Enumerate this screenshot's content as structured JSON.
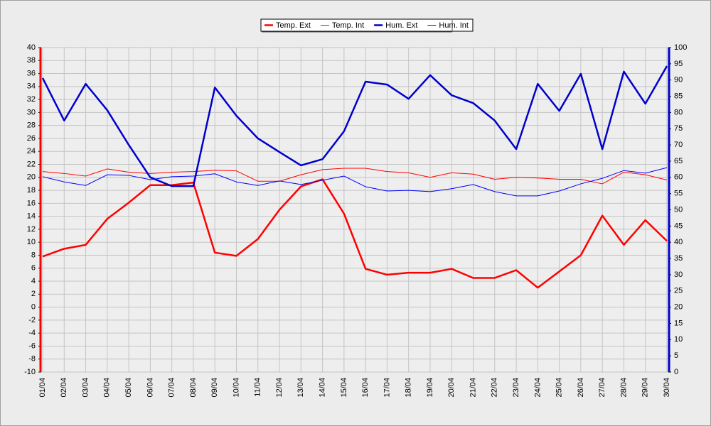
{
  "chart_data": {
    "type": "line",
    "categories": [
      "01/04",
      "02/04",
      "03/04",
      "04/04",
      "05/04",
      "06/04",
      "07/04",
      "08/04",
      "09/04",
      "10/04",
      "11/04",
      "12/04",
      "13/04",
      "14/04",
      "15/04",
      "16/04",
      "17/04",
      "18/04",
      "19/04",
      "20/04",
      "21/04",
      "22/04",
      "23/04",
      "24/04",
      "25/04",
      "26/04",
      "27/04",
      "28/04",
      "29/04",
      "30/04"
    ],
    "series": [
      {
        "name": "Temp. Ext",
        "color": "#ff0000",
        "line_width": 2.5,
        "values": [
          7.8,
          9.0,
          9.6,
          13.6,
          16.1,
          18.8,
          18.8,
          19.2,
          8.4,
          7.9,
          10.5,
          15.0,
          18.6,
          19.7,
          14.4,
          5.9,
          5.0,
          5.3,
          5.3,
          5.9,
          4.5,
          4.5,
          5.7,
          3.0,
          5.5,
          8.0,
          14.1,
          9.6,
          13.4,
          10.2
        ]
      },
      {
        "name": "Temp. Int",
        "color": "#ff0000",
        "line_width": 1,
        "values": [
          20.9,
          20.6,
          20.2,
          21.3,
          20.8,
          20.6,
          20.8,
          20.9,
          21.1,
          21.0,
          19.4,
          19.4,
          20.4,
          21.2,
          21.4,
          21.4,
          20.9,
          20.7,
          20.0,
          20.7,
          20.5,
          19.7,
          20.0,
          19.9,
          19.7,
          19.7,
          19.0,
          20.8,
          20.4,
          19.6
        ]
      },
      {
        "name": "Hum. Ext",
        "color": "#0000cc",
        "line_width": 2.5,
        "axis": "y2",
        "values": [
          90.6,
          77.5,
          88.8,
          80.7,
          70.0,
          60.0,
          57.3,
          57.3,
          87.7,
          79.0,
          72.0,
          67.8,
          63.7,
          65.6,
          74.2,
          89.5,
          88.6,
          84.2,
          91.5,
          85.3,
          82.9,
          77.5,
          68.7,
          88.8,
          80.5,
          91.9,
          68.7,
          92.6,
          82.7,
          94.3
        ]
      },
      {
        "name": "Hum. Int",
        "color": "#0000ff",
        "line_width": 1,
        "axis": "y2",
        "values": [
          60.2,
          58.6,
          57.5,
          60.8,
          60.6,
          59.3,
          60.2,
          60.4,
          61.1,
          58.6,
          57.5,
          58.9,
          57.8,
          59.1,
          60.4,
          57.1,
          55.8,
          56.0,
          55.6,
          56.5,
          57.8,
          55.6,
          54.3,
          54.3,
          55.8,
          58.0,
          59.7,
          62.1,
          61.3,
          63.0
        ]
      }
    ],
    "ylim": [
      -10,
      40
    ],
    "yticks": [
      -10,
      -8,
      -6,
      -4,
      -2,
      0,
      2,
      4,
      6,
      8,
      10,
      12,
      14,
      16,
      18,
      20,
      22,
      24,
      26,
      28,
      30,
      32,
      34,
      36,
      38,
      40
    ],
    "y2lim": [
      0,
      100
    ],
    "y2ticks": [
      0,
      5,
      10,
      15,
      20,
      25,
      30,
      35,
      40,
      45,
      50,
      55,
      60,
      65,
      70,
      75,
      80,
      85,
      90,
      95,
      100
    ],
    "yaxis_color": "#ff0000",
    "y2axis_color": "#0000cc",
    "grid": true,
    "legend": "top"
  }
}
